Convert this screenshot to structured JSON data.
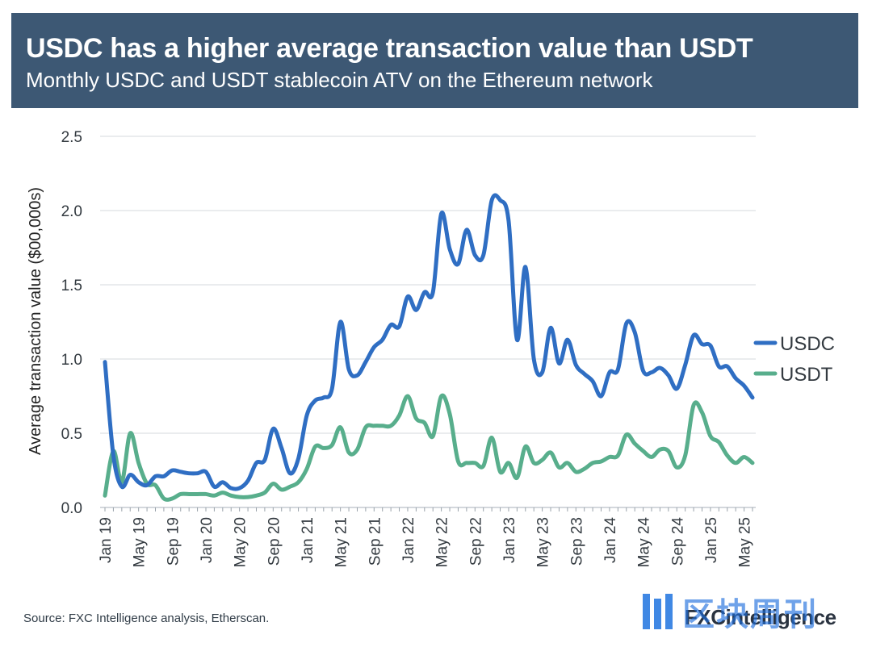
{
  "header": {
    "title": "USDC has a higher average transaction value than USDT",
    "subtitle": "Monthly USDC and USDT stablecoin ATV on the Ethereum network"
  },
  "source": "Source: FXC Intelligence analysis, Etherscan.",
  "logo": {
    "prefix": "FXC",
    "suffix": "intelligence"
  },
  "watermark": {
    "text": "区块周刊"
  },
  "colors": {
    "usdc": "#2f6ec3",
    "usdt": "#58ae8c",
    "header_bg": "#3d5874",
    "grid": "#e3e6e9"
  },
  "chart_data": {
    "type": "line",
    "title": "USDC has a higher average transaction value than USDT",
    "subtitle": "Monthly USDC and USDT stablecoin ATV on the Ethereum network",
    "xlabel": "",
    "ylabel": "Average transaction value ($00,000s)",
    "ylim": [
      0,
      2.5
    ],
    "yticks": [
      0.0,
      0.5,
      1.0,
      1.5,
      2.0,
      2.5
    ],
    "ytick_labels": [
      "0.0",
      "0.5",
      "1.0",
      "1.5",
      "2.0",
      "2.5"
    ],
    "grid": true,
    "legend_position": "right",
    "x": [
      "Jan 19",
      "Feb 19",
      "Mar 19",
      "Apr 19",
      "May 19",
      "Jun 19",
      "Jul 19",
      "Aug 19",
      "Sep 19",
      "Oct 19",
      "Nov 19",
      "Dec 19",
      "Jan 20",
      "Feb 20",
      "Mar 20",
      "Apr 20",
      "May 20",
      "Jun 20",
      "Jul 20",
      "Aug 20",
      "Sep 20",
      "Oct 20",
      "Nov 20",
      "Dec 20",
      "Jan 21",
      "Feb 21",
      "Mar 21",
      "Apr 21",
      "May 21",
      "Jun 21",
      "Jul 21",
      "Aug 21",
      "Sep 21",
      "Oct 21",
      "Nov 21",
      "Dec 21",
      "Jan 22",
      "Feb 22",
      "Mar 22",
      "Apr 22",
      "May 22",
      "Jun 22",
      "Jul 22",
      "Aug 22",
      "Sep 22",
      "Oct 22",
      "Nov 22",
      "Dec 22",
      "Jan 23",
      "Feb 23",
      "Mar 23",
      "Apr 23",
      "May 23",
      "Jun 23",
      "Jul 23",
      "Aug 23",
      "Sep 23",
      "Oct 23",
      "Nov 23",
      "Dec 23",
      "Jan 24",
      "Feb 24",
      "Mar 24",
      "Apr 24",
      "May 24",
      "Jun 24",
      "Jul 24",
      "Aug 24",
      "Sep 24",
      "Oct 24",
      "Nov 24",
      "Dec 24",
      "Jan 25",
      "Feb 25",
      "Mar 25",
      "Apr 25",
      "May 25",
      "Jun 25"
    ],
    "xtick_labels": [
      "Jan 19",
      "May 19",
      "Sep 19",
      "Jan 20",
      "May 20",
      "Sep 20",
      "Jan 21",
      "May 21",
      "Sep 21",
      "Jan 22",
      "May 22",
      "Sep 22",
      "Jan 23",
      "May 23",
      "Sep 23",
      "Jan 24",
      "May 24",
      "Sep 24",
      "Jan 25",
      "May 25"
    ],
    "series": [
      {
        "name": "USDC",
        "color": "#2f6ec3",
        "values": [
          0.98,
          0.35,
          0.14,
          0.22,
          0.17,
          0.15,
          0.21,
          0.21,
          0.25,
          0.24,
          0.23,
          0.23,
          0.24,
          0.14,
          0.17,
          0.13,
          0.13,
          0.18,
          0.3,
          0.32,
          0.53,
          0.4,
          0.23,
          0.33,
          0.62,
          0.72,
          0.74,
          0.8,
          1.25,
          0.93,
          0.89,
          0.98,
          1.08,
          1.13,
          1.23,
          1.22,
          1.42,
          1.33,
          1.45,
          1.45,
          1.98,
          1.74,
          1.64,
          1.87,
          1.7,
          1.7,
          2.07,
          2.07,
          1.93,
          1.13,
          1.62,
          1.0,
          0.91,
          1.21,
          0.97,
          1.13,
          0.96,
          0.9,
          0.85,
          0.75,
          0.91,
          0.93,
          1.24,
          1.18,
          0.92,
          0.91,
          0.94,
          0.89,
          0.8,
          0.96,
          1.16,
          1.1,
          1.09,
          0.95,
          0.95,
          0.87,
          0.82,
          0.74
        ]
      },
      {
        "name": "USDT",
        "color": "#58ae8c",
        "values": [
          0.08,
          0.38,
          0.17,
          0.5,
          0.3,
          0.16,
          0.15,
          0.06,
          0.06,
          0.09,
          0.09,
          0.09,
          0.09,
          0.08,
          0.1,
          0.08,
          0.07,
          0.07,
          0.08,
          0.1,
          0.16,
          0.12,
          0.14,
          0.17,
          0.26,
          0.41,
          0.4,
          0.42,
          0.54,
          0.37,
          0.39,
          0.54,
          0.55,
          0.55,
          0.55,
          0.62,
          0.75,
          0.6,
          0.57,
          0.48,
          0.75,
          0.63,
          0.31,
          0.3,
          0.3,
          0.28,
          0.47,
          0.24,
          0.3,
          0.2,
          0.41,
          0.3,
          0.32,
          0.37,
          0.27,
          0.3,
          0.24,
          0.26,
          0.3,
          0.31,
          0.34,
          0.35,
          0.49,
          0.43,
          0.38,
          0.34,
          0.39,
          0.38,
          0.27,
          0.35,
          0.69,
          0.64,
          0.48,
          0.44,
          0.35,
          0.3,
          0.34,
          0.3
        ]
      }
    ]
  }
}
